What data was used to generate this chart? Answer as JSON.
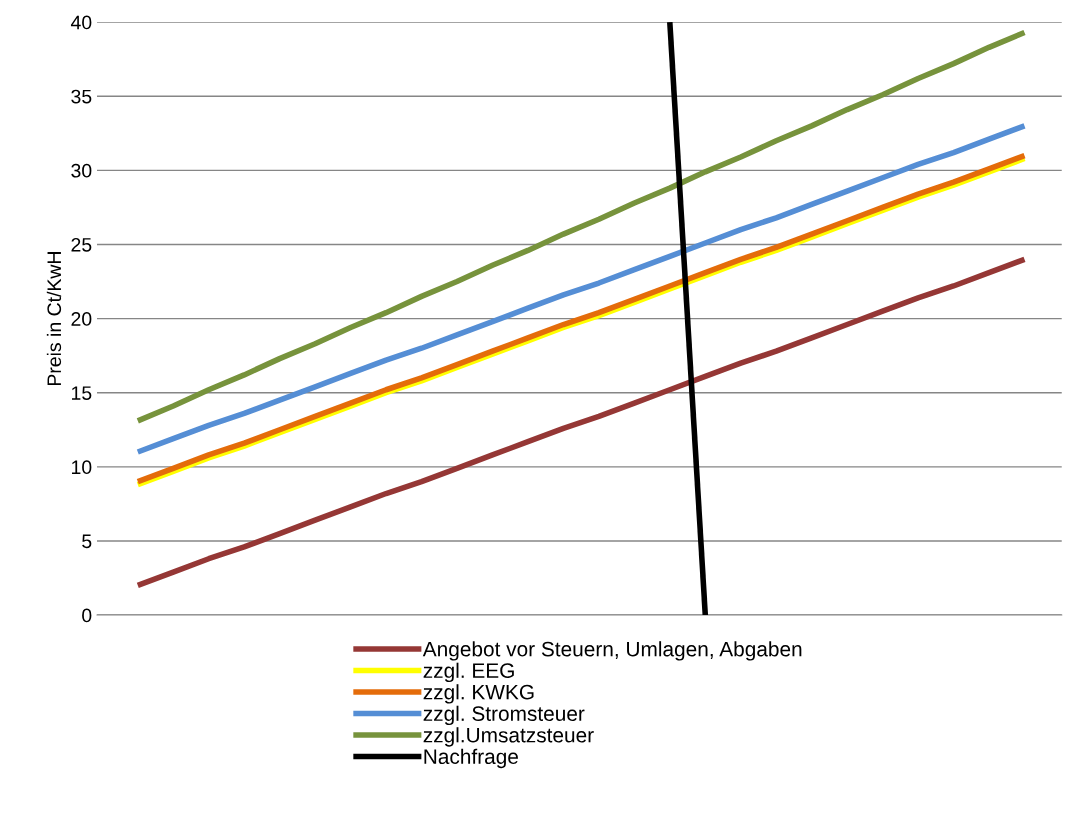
{
  "chart_data": {
    "type": "line",
    "ylabel": "Preis in Ct/KwH",
    "categories": [
      null,
      null,
      null,
      null,
      null,
      null,
      null,
      null,
      null,
      null,
      null,
      null,
      null,
      null,
      null,
      null,
      null,
      null,
      null,
      null,
      null,
      null,
      null,
      null,
      null,
      null
    ],
    "ylim": [
      0,
      40
    ],
    "yticks": [
      0,
      5,
      10,
      15,
      20,
      25,
      30,
      35,
      40
    ],
    "tick_labels": "y",
    "grid": "y",
    "legend": "bottom",
    "marker": "none",
    "line_style": "solid",
    "series": [
      {
        "name": "Angebot vor Steuern, Umlagen, Abgaben",
        "color": "#953735",
        "values": [
          2,
          2.9,
          3.8,
          4.6,
          5.5,
          6.4,
          7.3,
          8.2,
          9,
          9.9,
          10.8,
          11.7,
          12.6,
          13.4,
          14.3,
          15.2,
          16.1,
          17,
          17.8,
          18.7,
          19.6,
          20.5,
          21.4,
          22.2,
          23.1,
          24
        ]
      },
      {
        "name": "zzgl. EEG",
        "color": "#ffff00",
        "values": [
          8.8,
          9.7,
          10.6,
          11.4,
          12.3,
          13.2,
          14.1,
          15,
          15.8,
          16.7,
          17.6,
          18.5,
          19.4,
          20.2,
          21.1,
          22,
          22.9,
          23.8,
          24.6,
          25.5,
          26.4,
          27.3,
          28.2,
          29,
          29.9,
          30.8
        ]
      },
      {
        "name": "zzgl. KWKG",
        "color": "#e46c0a",
        "values": [
          9,
          9.9,
          10.8,
          11.6,
          12.5,
          13.4,
          14.3,
          15.2,
          16,
          16.9,
          17.8,
          18.7,
          19.6,
          20.4,
          21.3,
          22.2,
          23.1,
          24,
          24.8,
          25.7,
          26.6,
          27.5,
          28.4,
          29.2,
          30.1,
          31
        ]
      },
      {
        "name": "zzgl. Stromsteuer",
        "color": "#558ed5",
        "values": [
          11,
          11.9,
          12.8,
          13.6,
          14.5,
          15.4,
          16.3,
          17.2,
          18,
          18.9,
          19.8,
          20.7,
          21.6,
          22.4,
          23.3,
          24.2,
          25.1,
          26,
          26.8,
          27.7,
          28.6,
          29.5,
          30.4,
          31.2,
          32.1,
          33
        ]
      },
      {
        "name": "zzgl.Umsatzsteuer",
        "color": "#77933c",
        "values": [
          13.1,
          14.1,
          15.2,
          16.2,
          17.3,
          18.3,
          19.4,
          20.4,
          21.5,
          22.5,
          23.6,
          24.6,
          25.7,
          26.7,
          27.8,
          28.8,
          29.9,
          30.9,
          32,
          33,
          34.1,
          35.1,
          36.2,
          37.2,
          38.3,
          39.3
        ]
      },
      {
        "name": "Nachfrage",
        "color": "#000000",
        "values": [
          null,
          null,
          null,
          null,
          null,
          null,
          null,
          null,
          null,
          null,
          null,
          null,
          null,
          null,
          null,
          40,
          0,
          null,
          null,
          null,
          null,
          null,
          null,
          null,
          null,
          null
        ]
      }
    ]
  }
}
